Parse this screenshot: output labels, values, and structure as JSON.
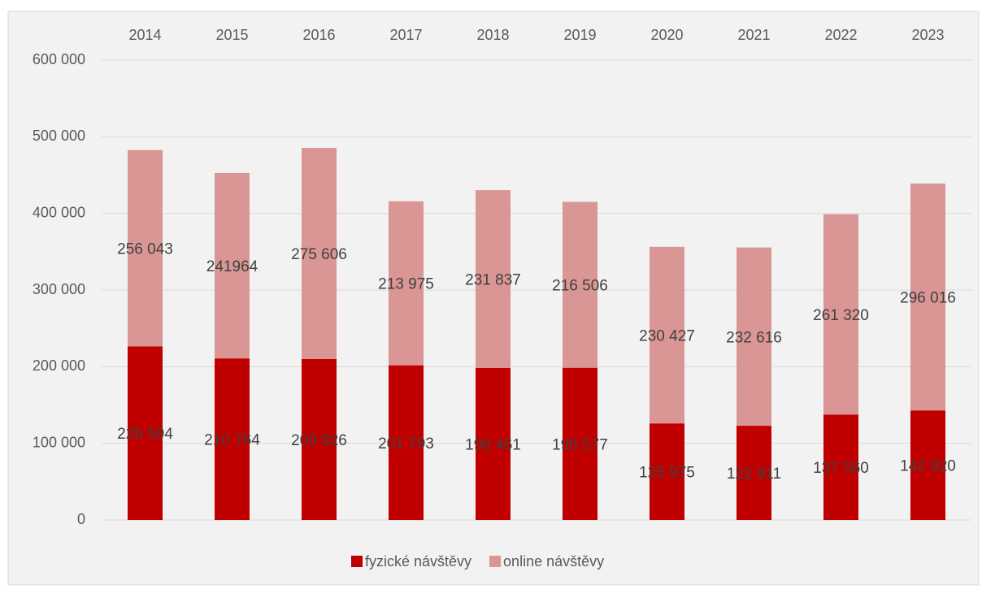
{
  "chart_data": {
    "type": "stacked_bar",
    "categories": [
      "2014",
      "2015",
      "2016",
      "2017",
      "2018",
      "2019",
      "2020",
      "2021",
      "2022",
      "2023"
    ],
    "series": [
      {
        "name": "fyzické návštěvy",
        "color": "#c00000",
        "values": [
          226594,
          210764,
          209926,
          201793,
          198461,
          198577,
          125975,
          122911,
          137560,
          142920
        ],
        "value_labels": [
          "226 594",
          "210 764",
          "209 926",
          "201 793",
          "198 461",
          "198 577",
          "125 975",
          "122 911",
          "137 560",
          "142 920"
        ]
      },
      {
        "name": "online návštěvy",
        "color": "#d99694",
        "values": [
          256043,
          241964,
          275606,
          213975,
          231837,
          216506,
          230427,
          232616,
          261320,
          296016
        ],
        "value_labels": [
          "256 043",
          "241964",
          "275 606",
          "213 975",
          "231 837",
          "216 506",
          "230 427",
          "232 616",
          "261 320",
          "296 016"
        ]
      }
    ],
    "ylim": [
      0,
      600000
    ],
    "yticks": [
      0,
      {
        "value": 100000,
        "label": "100 000"
      },
      {
        "value": 200000,
        "label": "200 000"
      },
      {
        "value": 300000,
        "label": "300 000"
      },
      {
        "value": 400000,
        "label": "400 000"
      },
      {
        "value": 500000,
        "label": "500 000"
      },
      {
        "value": 600000,
        "label": "600 000"
      }
    ],
    "grid": true,
    "legend": "bottom"
  }
}
